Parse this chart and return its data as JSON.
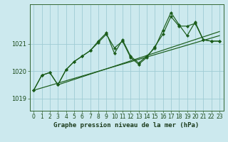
{
  "title": "Graphe pression niveau de la mer (hPa)",
  "bg_color": "#cce9ee",
  "grid_color": "#9fccd4",
  "line_color": "#1a5c1a",
  "xlim": [
    -0.5,
    23.5
  ],
  "ylim": [
    1018.55,
    1022.45
  ],
  "yticks": [
    1019,
    1020,
    1021
  ],
  "xticks": [
    0,
    1,
    2,
    3,
    4,
    5,
    6,
    7,
    8,
    9,
    10,
    11,
    12,
    13,
    14,
    15,
    16,
    17,
    18,
    19,
    20,
    21,
    22,
    23
  ],
  "series_line1": {
    "x": [
      0,
      1,
      2,
      3,
      4,
      5,
      6,
      7,
      8,
      9,
      10,
      11,
      12,
      13,
      14,
      15,
      16,
      17,
      18,
      19,
      20,
      21,
      22,
      23
    ],
    "y": [
      1019.3,
      1019.85,
      1019.95,
      1019.5,
      1020.05,
      1020.35,
      1020.55,
      1020.75,
      1021.1,
      1021.4,
      1020.65,
      1021.15,
      1020.55,
      1020.3,
      1020.55,
      1020.85,
      1021.5,
      1022.15,
      1021.7,
      1021.3,
      1021.8,
      1021.15,
      1021.1,
      1021.1
    ]
  },
  "series_line2": {
    "x": [
      0,
      1,
      2,
      3,
      4,
      5,
      6,
      7,
      8,
      9,
      10,
      11,
      12,
      13,
      14,
      15,
      16,
      17,
      18,
      19,
      20,
      21,
      22,
      23
    ],
    "y": [
      1019.3,
      1019.85,
      1019.95,
      1019.5,
      1020.05,
      1020.35,
      1020.55,
      1020.75,
      1021.05,
      1021.35,
      1020.85,
      1021.1,
      1020.5,
      1020.25,
      1020.5,
      1020.9,
      1021.35,
      1022.0,
      1021.65,
      1021.65,
      1021.75,
      1021.15,
      1021.1,
      1021.1
    ]
  },
  "trend1": {
    "x": [
      0,
      23
    ],
    "y": [
      1019.3,
      1021.3
    ]
  },
  "trend2": {
    "x": [
      3,
      23
    ],
    "y": [
      1019.5,
      1021.45
    ]
  },
  "tick_fontsize": 5.5,
  "title_fontsize": 6.5
}
